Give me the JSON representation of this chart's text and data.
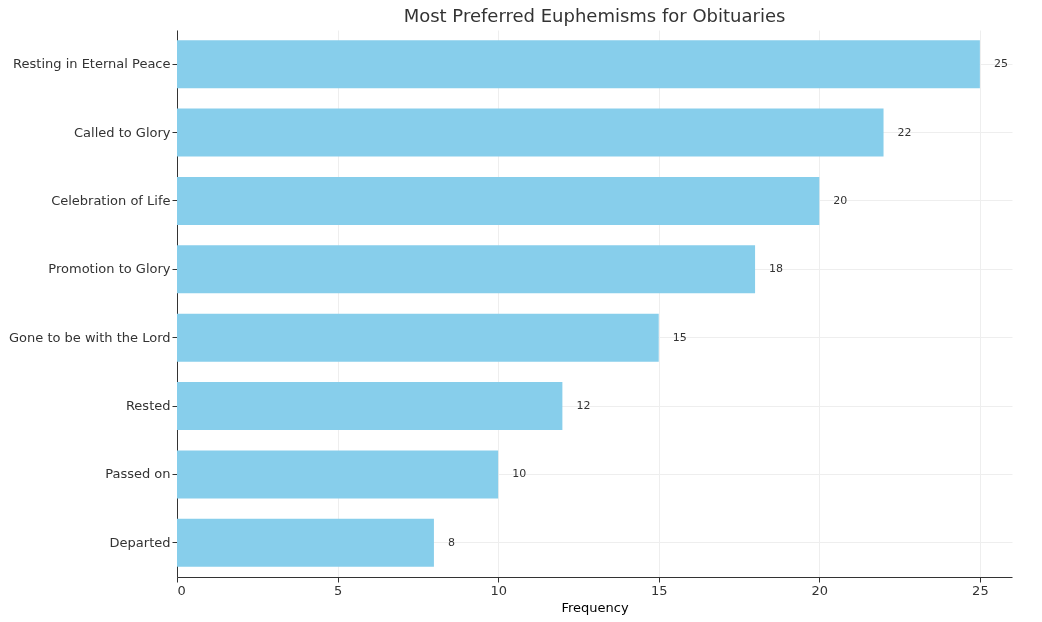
{
  "chart_data": {
    "type": "bar",
    "orientation": "horizontal",
    "title": "Most Preferred Euphemisms for Obituaries",
    "xlabel": "Frequency",
    "categories": [
      "Resting in Eternal Peace",
      "Called to Glory",
      "Celebration of Life",
      "Promotion to Glory",
      "Gone to be with the Lord",
      "Rested",
      "Passed on",
      "Departed"
    ],
    "values": [
      25,
      22,
      20,
      18,
      15,
      12,
      10,
      8
    ],
    "color": "#87ceeb",
    "xlim": [
      0,
      26
    ],
    "xticks": [
      0,
      5,
      10,
      15,
      20,
      25
    ],
    "grid": true,
    "data_labels": true
  }
}
